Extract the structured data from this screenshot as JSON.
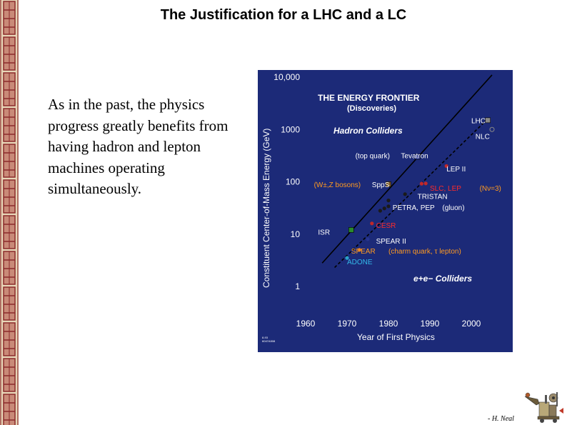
{
  "title": "The Justification for a LHC and a LC",
  "body_text": "As in the past, the physics progress greatly benefits from having hadron and lepton machines operating simultaneously.",
  "credit": "- H. Neal",
  "colors": {
    "panel_bg": "#1c2a78",
    "axis_text": "#ffffff",
    "heading_text": "#ffffff",
    "hadron_line": "#000000",
    "lepton_line": "#000000",
    "point_dark": "#1a1a1a",
    "point_blue": "#27358f",
    "point_red": "#c0282a",
    "point_green": "#2a8a2a",
    "point_brown": "#7a5a2a",
    "point_orange": "#e07a20",
    "point_cyan": "#2aa0c8",
    "point_grey": "#888888",
    "label_white": "#ffffff",
    "label_red": "#ff2a2a",
    "label_orange": "#ff9a20",
    "label_cyan": "#33b8e8",
    "border_red": "#8b2a2a",
    "border_cream": "#e8d6b8"
  },
  "chart_data": {
    "type": "scatter",
    "heading": "THE ENERGY FRONTIER",
    "subheading": "(Discoveries)",
    "xlabel": "Year of First Physics",
    "ylabel": "Constituent Center-of-Mass Energy   (GeV)",
    "xlim": [
      1960,
      2010
    ],
    "ylim": [
      1,
      10000
    ],
    "yscale": "log",
    "xticks": [
      1960,
      1970,
      1980,
      1990,
      2000
    ],
    "xtick_labels": [
      "1960",
      "1970",
      "1980",
      "1990",
      "2000"
    ],
    "yticks": [
      1,
      10,
      100,
      1000,
      10000
    ],
    "ytick_labels": [
      "1",
      "10",
      "100",
      "1000",
      "10,000"
    ],
    "corner_code": [
      "8-93",
      "6047A508"
    ],
    "groups": [
      {
        "label": "Hadron Colliders"
      },
      {
        "label": "e+e−   Colliders"
      }
    ],
    "series": [
      {
        "name": "Hadron Colliders",
        "line": "solid",
        "x": [
          1964,
          2005
        ],
        "y": [
          2.8,
          11000
        ]
      },
      {
        "name": "e+e−   Colliders",
        "line": "dashed",
        "x": [
          1967,
          2004
        ],
        "y": [
          2.3,
          1600
        ]
      }
    ],
    "points": [
      {
        "x": 1970,
        "y": 3.5,
        "color": "point_cyan",
        "shape": "circle"
      },
      {
        "x": 1973,
        "y": 5,
        "color": "point_orange",
        "shape": "circle"
      },
      {
        "x": 1975,
        "y": 8,
        "color": "point_blue",
        "shape": "circle"
      },
      {
        "x": 1971,
        "y": 12,
        "color": "point_green",
        "shape": "square"
      },
      {
        "x": 1976,
        "y": 16,
        "color": "point_red",
        "shape": "circle"
      },
      {
        "x": 1978,
        "y": 28,
        "color": "point_dark",
        "shape": "circle"
      },
      {
        "x": 1979,
        "y": 31,
        "color": "point_dark",
        "shape": "circle"
      },
      {
        "x": 1980,
        "y": 34,
        "color": "point_dark",
        "shape": "circle"
      },
      {
        "x": 1980,
        "y": 44,
        "color": "point_dark",
        "shape": "circle"
      },
      {
        "x": 1984,
        "y": 58,
        "color": "point_dark",
        "shape": "circle"
      },
      {
        "x": 1980,
        "y": 90,
        "color": "point_brown",
        "shape": "square"
      },
      {
        "x": 1989,
        "y": 93,
        "color": "point_red",
        "shape": "circle"
      },
      {
        "x": 1988,
        "y": 92,
        "color": "point_red",
        "shape": "circle"
      },
      {
        "x": 1987,
        "y": 300,
        "color": "point_blue",
        "shape": "square"
      },
      {
        "x": 1994,
        "y": 200,
        "color": "point_red",
        "shape": "circle"
      },
      {
        "x": 2004,
        "y": 1500,
        "color": "point_grey",
        "shape": "square"
      },
      {
        "x": 2005,
        "y": 1000,
        "color": "point_grey",
        "shape": "open-circle"
      }
    ],
    "annotations": [
      {
        "text": "LHC",
        "x": 2000,
        "y": 1500,
        "color": "label_white"
      },
      {
        "text": "NLC",
        "x": 2001,
        "y": 750,
        "color": "label_white"
      },
      {
        "text": "(top quark)",
        "x": 1972,
        "y": 320,
        "color": "label_white"
      },
      {
        "text": "Tevatron",
        "x": 1983,
        "y": 320,
        "color": "label_white"
      },
      {
        "text": "LEP II",
        "x": 1994,
        "y": 180,
        "color": "label_white"
      },
      {
        "text": "(W±,Z  bosons)",
        "x": 1962,
        "y": 90,
        "color": "label_orange"
      },
      {
        "text": "SppS",
        "x": 1976,
        "y": 90,
        "color": "label_white"
      },
      {
        "text": "SLC, LEP",
        "x": 1990,
        "y": 77,
        "color": "label_red"
      },
      {
        "text": "(Nν=3)",
        "x": 2002,
        "y": 77,
        "color": "label_orange"
      },
      {
        "text": "TRISTAN",
        "x": 1987,
        "y": 53,
        "color": "label_white"
      },
      {
        "text": "PETRA, PEP",
        "x": 1981,
        "y": 33,
        "color": "label_white"
      },
      {
        "text": "(gluon)",
        "x": 1993,
        "y": 33,
        "color": "label_white"
      },
      {
        "text": "CESR",
        "x": 1977,
        "y": 15,
        "color": "label_red"
      },
      {
        "text": "ISR",
        "x": 1963,
        "y": 11,
        "color": "label_white"
      },
      {
        "text": "SPEAR II",
        "x": 1977,
        "y": 7.5,
        "color": "label_white"
      },
      {
        "text": "SPEAR",
        "x": 1971,
        "y": 4.8,
        "color": "label_orange"
      },
      {
        "text": "(charm quark, τ lepton)",
        "x": 1980,
        "y": 4.8,
        "color": "label_orange"
      },
      {
        "text": "ADONE",
        "x": 1970,
        "y": 3.0,
        "color": "label_cyan"
      }
    ]
  }
}
